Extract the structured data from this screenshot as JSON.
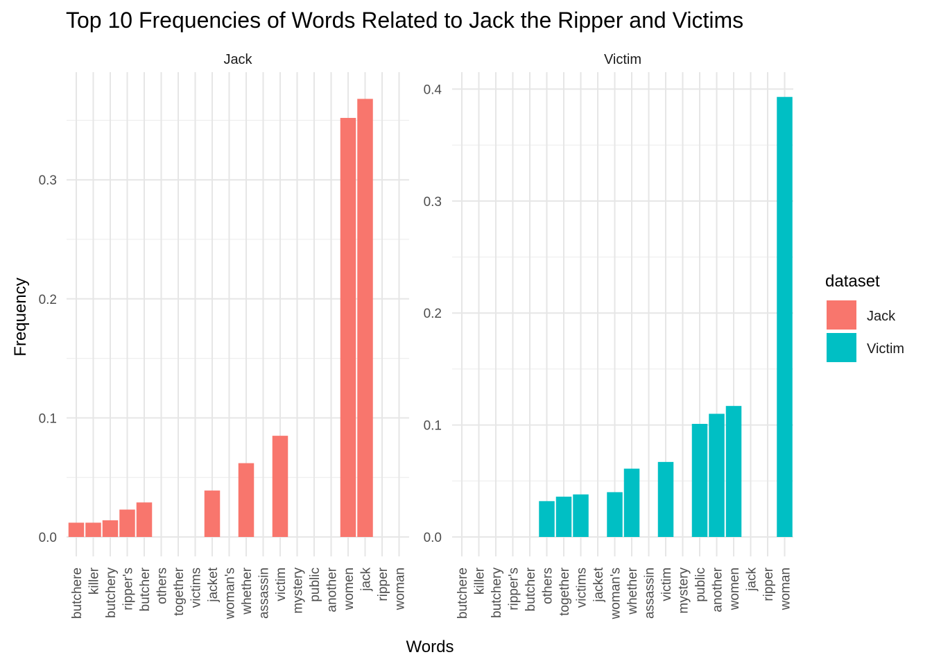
{
  "chart_data": {
    "type": "bar",
    "title": "Top 10 Frequencies of Words Related to Jack the Ripper and Victims",
    "xlabel": "Words",
    "ylabel": "Frequency",
    "grid": true,
    "legend_position": "right",
    "legend": {
      "title": "dataset",
      "entries": [
        {
          "label": "Jack",
          "color": "#F8766D"
        },
        {
          "label": "Victim",
          "color": "#00BFC4"
        }
      ]
    },
    "categories": [
      "butchere",
      "killer",
      "butchery",
      "ripper's",
      "butcher",
      "others",
      "together",
      "victims",
      "jacket",
      "woman's",
      "whether",
      "assassin",
      "victim",
      "mystery",
      "public",
      "another",
      "women",
      "jack",
      "ripper",
      "woman"
    ],
    "facets": [
      {
        "name": "Jack",
        "color": "#F8766D",
        "ylim": [
          0,
          0.37
        ],
        "yticks": [
          0.0,
          0.1,
          0.2,
          0.3
        ],
        "ytick_labels": [
          "0.0",
          "0.1",
          "0.2",
          "0.3"
        ],
        "values": [
          0.012,
          0.012,
          0.014,
          0.023,
          0.029,
          null,
          null,
          null,
          0.039,
          null,
          0.062,
          null,
          0.085,
          null,
          null,
          null,
          0.352,
          0.368,
          null,
          null
        ]
      },
      {
        "name": "Victim",
        "color": "#00BFC4",
        "ylim": [
          0,
          0.4
        ],
        "yticks": [
          0.0,
          0.1,
          0.2,
          0.3,
          0.4
        ],
        "ytick_labels": [
          "0.0",
          "0.1",
          "0.2",
          "0.3",
          "0.4"
        ],
        "values": [
          null,
          null,
          null,
          null,
          null,
          0.032,
          0.036,
          0.038,
          null,
          0.04,
          0.061,
          null,
          0.067,
          null,
          0.101,
          0.11,
          0.117,
          null,
          null,
          0.393
        ]
      }
    ]
  }
}
